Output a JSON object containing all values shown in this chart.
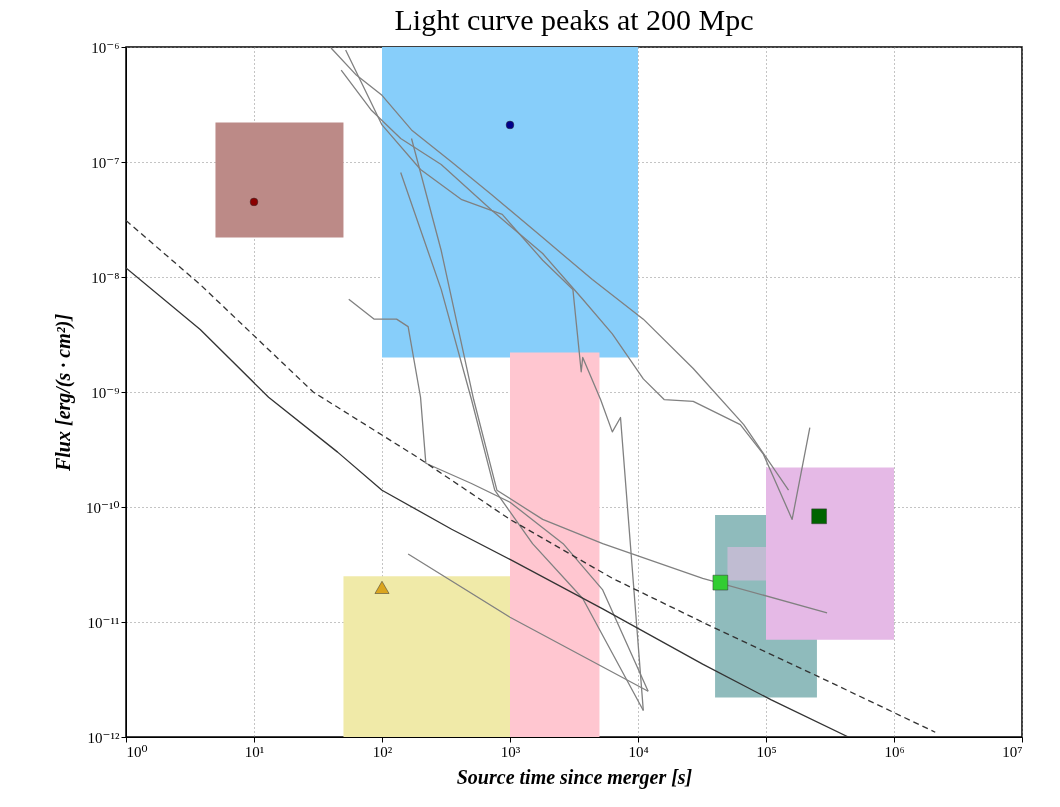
{
  "chart_data": {
    "type": "line",
    "title": "Light curve peaks at 200 Mpc",
    "xlabel": "Source time since merger [s]",
    "ylabel": "Flux [erg/(s · cm²)]",
    "log": "xy",
    "grid": true,
    "xlim": [
      1,
      10000000
    ],
    "ylim": [
      1e-12,
      1e-06
    ],
    "xticks": [
      {
        "value": 1,
        "label": "10⁰"
      },
      {
        "value": 10,
        "label": "10¹"
      },
      {
        "value": 100,
        "label": "10²"
      },
      {
        "value": 1000,
        "label": "10³"
      },
      {
        "value": 10000,
        "label": "10⁴"
      },
      {
        "value": 100000,
        "label": "10⁵"
      },
      {
        "value": 1000000,
        "label": "10⁶"
      },
      {
        "value": 10000000,
        "label": "10⁷"
      }
    ],
    "yticks": [
      {
        "value": 1e-12,
        "label": "10⁻¹²"
      },
      {
        "value": 1e-11,
        "label": "10⁻¹¹"
      },
      {
        "value": 1e-10,
        "label": "10⁻¹⁰"
      },
      {
        "value": 1e-09,
        "label": "10⁻⁹"
      },
      {
        "value": 1e-08,
        "label": "10⁻⁸"
      },
      {
        "value": 1e-07,
        "label": "10⁻⁷"
      },
      {
        "value": 1e-06,
        "label": "10⁻⁶"
      }
    ],
    "series": [
      {
        "type": "area",
        "color": "#bc8a87",
        "x": [
          5,
          50
        ],
        "values": [
          null,
          null
        ],
        "lower": [
          2.2e-08,
          2.2e-08
        ],
        "upper": [
          2.2e-07,
          2.2e-07
        ]
      },
      {
        "type": "area",
        "color": "#87cefa",
        "x": [
          100,
          10000
        ],
        "values": [
          null,
          null
        ],
        "lower": [
          2e-09,
          2e-09
        ],
        "upper": [
          1e-06,
          1e-06
        ]
      },
      {
        "type": "area",
        "color": "#ffc6d0",
        "x": [
          1000,
          5000
        ],
        "values": [
          null,
          null
        ],
        "lower": [
          1e-12,
          1e-12
        ],
        "upper": [
          2.2e-09,
          2.2e-09
        ]
      },
      {
        "type": "area",
        "color": "#f0eaa8",
        "x": [
          50,
          1000
        ],
        "values": [
          null,
          null
        ],
        "lower": [
          1e-12,
          1e-12
        ],
        "upper": [
          2.5e-11,
          2.5e-11
        ]
      },
      {
        "type": "area",
        "color": "#8fbbbc",
        "x": [
          40000,
          250000
        ],
        "values": [
          null,
          null
        ],
        "lower": [
          2.2e-12,
          2.2e-12
        ],
        "upper": [
          8.5e-11,
          8.5e-11
        ]
      },
      {
        "type": "area",
        "color": "#c0bcd2",
        "x": [
          50000,
          100000
        ],
        "values": [
          null,
          null
        ],
        "lower": [
          2.3e-11,
          2.3e-11
        ],
        "upper": [
          4.5e-11,
          4.5e-11
        ]
      },
      {
        "type": "area",
        "color": "#e5b9e6",
        "x": [
          100000,
          1000000
        ],
        "values": [
          null,
          null
        ],
        "lower": [
          7e-12,
          7e-12
        ],
        "upper": [
          2.2e-10,
          2.2e-10
        ]
      },
      {
        "color": "#808080",
        "line_style": "solid",
        "x": [
          40,
          63,
          100,
          170,
          350,
          720,
          1800,
          4400,
          11000,
          27000,
          67000,
          150000
        ],
        "values": [
          9.8e-07,
          5.7e-07,
          3.8e-07,
          1.9e-07,
          1e-07,
          5.2e-08,
          2.2e-08,
          9.5e-09,
          4.3e-09,
          1.6e-09,
          5.2e-10,
          1.4e-10
        ]
      },
      {
        "color": "#808080",
        "line_style": "solid",
        "x": [
          48,
          83,
          140,
          290,
          720,
          1800,
          3700,
          6300,
          11000,
          16000,
          27000,
          63000,
          95000,
          160000,
          220000
        ],
        "values": [
          6.3e-07,
          2.8e-07,
          1.6e-07,
          9.5e-08,
          3.8e-08,
          1.6e-08,
          6.4e-09,
          3.2e-09,
          1.3e-09,
          8.6e-10,
          8.3e-10,
          5.2e-10,
          2.9e-10,
          7.8e-11,
          4.9e-10
        ]
      },
      {
        "color": "#808080",
        "line_style": "solid",
        "x": [
          52,
          100,
          200,
          420,
          870,
          1800,
          3100,
          3600,
          3700,
          5100,
          6300,
          7300,
          11000
        ],
        "values": [
          9.4e-07,
          2.1e-07,
          8.6e-08,
          4.7e-08,
          3.5e-08,
          1.4e-08,
          7.8e-09,
          1.5e-09,
          2e-09,
          8.6e-10,
          4.5e-10,
          6e-10,
          1.7e-12
        ]
      },
      {
        "color": "#808080",
        "line_style": "solid",
        "x": [
          55,
          87,
          130,
          160,
          200,
          220,
          500,
          1000,
          2600,
          5300,
          12000
        ],
        "values": [
          6.4e-09,
          4.3e-09,
          4.3e-09,
          3.7e-09,
          9e-10,
          2.4e-10,
          1.6e-10,
          1.1e-10,
          4.8e-11,
          1.9e-11,
          2.5e-12
        ]
      },
      {
        "color": "#808080",
        "line_style": "solid",
        "x": [
          140,
          290,
          500,
          760,
          1500,
          3700,
          11000
        ],
        "values": [
          8.1e-08,
          7.8e-09,
          8.6e-10,
          1.4e-10,
          4.8e-11,
          1.6e-11,
          1.7e-12
        ]
      },
      {
        "color": "#808080",
        "line_style": "solid",
        "x": [
          170,
          290,
          520,
          790,
          1800,
          5300,
          32000,
          300000
        ],
        "values": [
          1.6e-07,
          1.7e-08,
          8.6e-10,
          1.4e-10,
          7.8e-11,
          4.8e-11,
          2.4e-11,
          1.2e-11
        ]
      },
      {
        "color": "#808080",
        "line_style": "solid",
        "x": [
          160,
          1000,
          12000
        ],
        "values": [
          3.9e-11,
          1.1e-11,
          2.5e-12
        ]
      },
      {
        "color": "#333333",
        "line_style": "solid",
        "x": [
          1,
          3.8,
          13,
          45,
          100,
          350,
          1000,
          5300,
          32000,
          110000,
          440000
        ],
        "values": [
          1.2e-08,
          3.5e-09,
          9e-10,
          3e-10,
          1.4e-10,
          6.4e-11,
          3.5e-11,
          1.3e-11,
          4.3e-12,
          2.1e-12,
          1e-12
        ]
      },
      {
        "color": "#333333",
        "line_style": "dashed",
        "x": [
          1,
          3.8,
          29,
          190,
          1000,
          6300,
          37000,
          250000,
          2100000
        ],
        "values": [
          3.1e-08,
          8.6e-09,
          1e-09,
          2.7e-10,
          7.8e-11,
          2.4e-11,
          9.2e-12,
          3.4e-12,
          1.1e-12
        ]
      },
      {
        "type": "scatter",
        "color": "#8b0000",
        "marker": "circle",
        "x": [
          10
        ],
        "values": [
          4.5e-08
        ]
      },
      {
        "type": "scatter",
        "color": "#00008b",
        "marker": "circle",
        "x": [
          1000
        ],
        "values": [
          2.1e-07
        ]
      },
      {
        "type": "scatter",
        "color": "#daa520",
        "marker": "triangle",
        "x": [
          100
        ],
        "values": [
          2e-11
        ]
      },
      {
        "type": "scatter",
        "color": "#32cd32",
        "marker": "square",
        "x": [
          44000
        ],
        "values": [
          2.2e-11
        ]
      },
      {
        "type": "scatter",
        "color": "#006400",
        "marker": "square",
        "x": [
          260000
        ],
        "values": [
          8.3e-11
        ]
      }
    ]
  }
}
